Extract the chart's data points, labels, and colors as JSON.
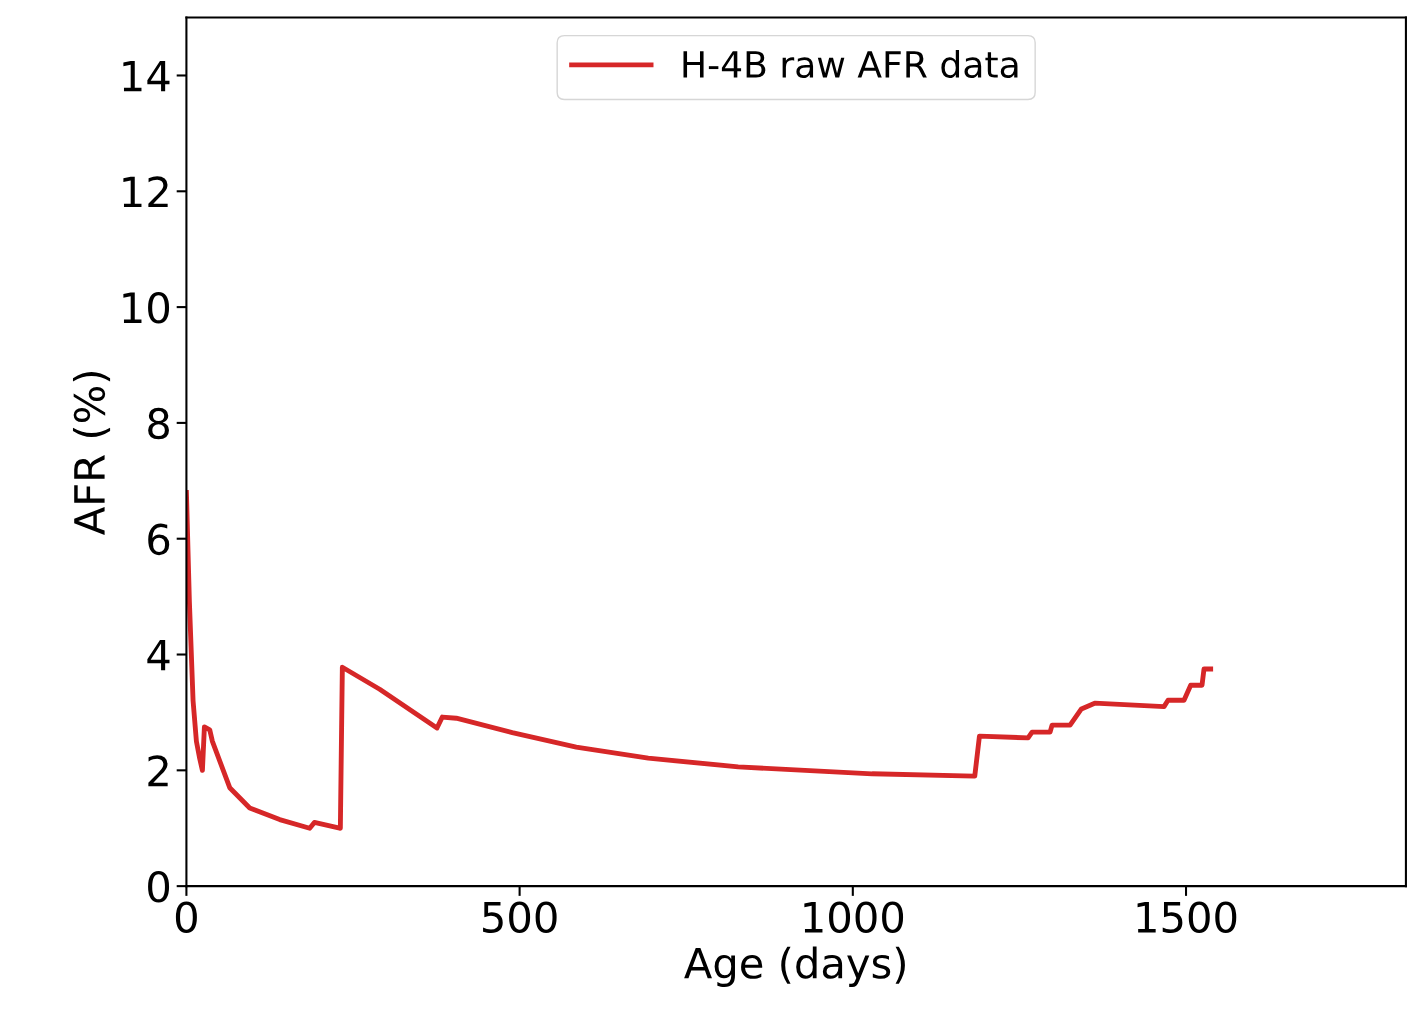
{
  "chart_data": {
    "type": "line",
    "xlabel": "Age (days)",
    "ylabel": "AFR (%)",
    "xlim": [
      0,
      1830
    ],
    "ylim": [
      0,
      15
    ],
    "xticks": [
      0,
      500,
      1000,
      1500
    ],
    "yticks": [
      0,
      2,
      4,
      6,
      8,
      10,
      12,
      14
    ],
    "grid": false,
    "legend": "top",
    "marker": "none",
    "line_style": "solid",
    "series": [
      {
        "name": "H-4B raw AFR data",
        "color": "#d62728",
        "x": [
          0,
          4.5,
          10,
          15,
          20,
          24,
          27,
          35,
          39,
          65,
          95,
          140,
          185,
          192,
          230,
          231,
          234,
          290,
          376,
          384,
          405,
          489,
          585,
          693,
          828,
          1029,
          1182,
          1183,
          1190,
          1263,
          1269,
          1296,
          1299,
          1326,
          1343,
          1363,
          1467,
          1473,
          1497,
          1507,
          1524,
          1527,
          1537
        ],
        "values": [
          6.8,
          4.9,
          3.2,
          2.5,
          2.2,
          2.0,
          2.75,
          2.7,
          2.5,
          1.7,
          1.35,
          1.15,
          1.0,
          1.1,
          1.0,
          1.0,
          3.78,
          3.4,
          2.73,
          2.92,
          2.9,
          2.65,
          2.4,
          2.21,
          2.06,
          1.94,
          1.9,
          1.9,
          2.59,
          2.56,
          2.66,
          2.66,
          2.78,
          2.78,
          3.06,
          3.16,
          3.1,
          3.21,
          3.21,
          3.47,
          3.47,
          3.75,
          3.75
        ]
      }
    ]
  }
}
